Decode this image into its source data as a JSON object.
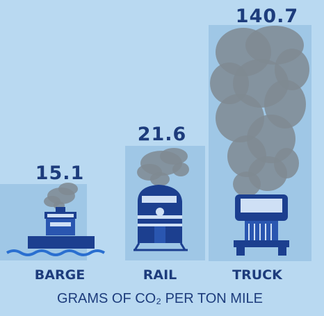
{
  "chart_data": {
    "type": "pictograph",
    "categories": [
      "BARGE",
      "RAIL",
      "TRUCK"
    ],
    "values": [
      15.1,
      21.6,
      140.7
    ],
    "subtitle": "GRAMS OF CO₂ PER TON MILE"
  }
}
